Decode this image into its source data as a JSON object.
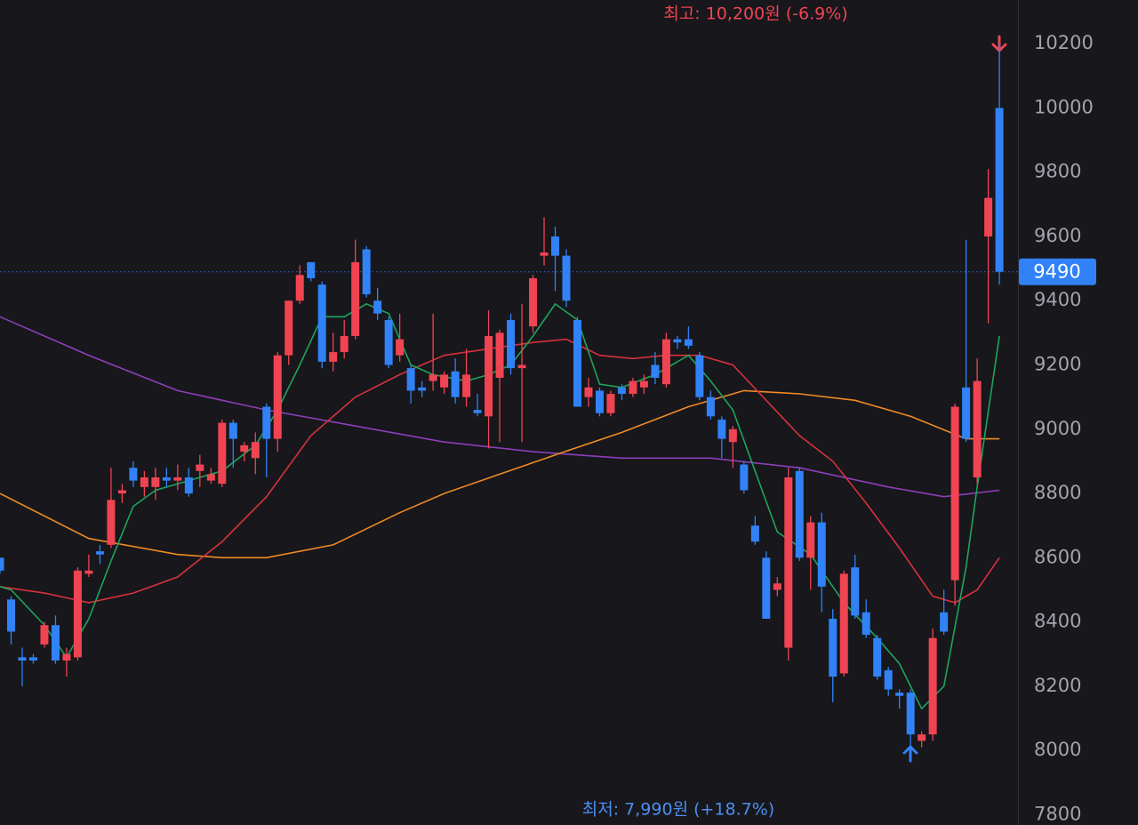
{
  "chart_data": {
    "type": "candlestick",
    "up_color": "#f04452",
    "down_color": "#3182f6",
    "open": [
      8600,
      8470,
      8290,
      8290,
      8330,
      8390,
      8280,
      8290,
      8550,
      8620,
      8640,
      8800,
      8880,
      8820,
      8820,
      8850,
      8840,
      8850,
      8870,
      8840,
      8830,
      9020,
      8930,
      8910,
      9070,
      8970,
      9230,
      9400,
      9520,
      9450,
      9210,
      9240,
      9290,
      9560,
      9400,
      9340,
      9230,
      9190,
      9130,
      9150,
      9130,
      9180,
      9100,
      9060,
      9040,
      9160,
      9340,
      9190,
      9320,
      9540,
      9600,
      9540,
      9340,
      9100,
      9120,
      9050,
      9130,
      9110,
      9130,
      9200,
      9140,
      9280,
      9280,
      9230,
      9100,
      9030,
      8960,
      8890,
      8700,
      8600,
      8500,
      8320,
      8870,
      8600,
      8710,
      8410,
      8240,
      8570,
      8430,
      8350,
      8250,
      8180,
      8180,
      8030,
      8050,
      8430,
      8530,
      9130,
      8850,
      9600,
      10000
    ],
    "high": [
      8600,
      8480,
      8320,
      8300,
      8400,
      8420,
      8320,
      8570,
      8610,
      8640,
      8880,
      8830,
      8900,
      8870,
      8880,
      8880,
      8890,
      8880,
      8920,
      8880,
      9030,
      9030,
      8960,
      8990,
      9080,
      9240,
      9400,
      9510,
      9520,
      9460,
      9300,
      9340,
      9590,
      9570,
      9440,
      9350,
      9360,
      9200,
      9150,
      9360,
      9180,
      9220,
      9250,
      9110,
      9370,
      9310,
      9360,
      9390,
      9480,
      9660,
      9630,
      9560,
      9350,
      9160,
      9130,
      9120,
      9140,
      9160,
      9170,
      9240,
      9300,
      9290,
      9320,
      9240,
      9120,
      9040,
      9010,
      8900,
      8730,
      8620,
      8540,
      8880,
      8880,
      8730,
      8740,
      8440,
      8560,
      8610,
      8470,
      8360,
      8260,
      8190,
      8190,
      8060,
      8380,
      8500,
      9080,
      9590,
      9220,
      9810,
      10200
    ],
    "low": [
      8550,
      8330,
      8200,
      8270,
      8320,
      8270,
      8230,
      8280,
      8540,
      8580,
      8630,
      8770,
      8820,
      8790,
      8780,
      8820,
      8810,
      8790,
      8820,
      8830,
      8820,
      8880,
      8900,
      8860,
      8850,
      8930,
      9200,
      9390,
      9460,
      9190,
      9180,
      9220,
      9280,
      9410,
      9340,
      9190,
      9210,
      9080,
      9100,
      9120,
      9110,
      9080,
      9070,
      9040,
      8940,
      8960,
      9170,
      8960,
      9300,
      9510,
      9430,
      9380,
      9070,
      9070,
      9040,
      9040,
      9090,
      9100,
      9110,
      9140,
      9130,
      9250,
      9250,
      9090,
      9030,
      8910,
      8880,
      8800,
      8640,
      8410,
      8480,
      8280,
      8590,
      8500,
      8430,
      8150,
      8230,
      8410,
      8350,
      8220,
      8170,
      8130,
      7990,
      8010,
      8030,
      8360,
      8450,
      8960,
      8830,
      9330,
      9450
    ],
    "close": [
      8560,
      8370,
      8280,
      8280,
      8390,
      8280,
      8300,
      8560,
      8560,
      8610,
      8780,
      8810,
      8840,
      8850,
      8850,
      8840,
      8850,
      8800,
      8890,
      8860,
      9020,
      8970,
      8950,
      8960,
      8970,
      9230,
      9400,
      9480,
      9470,
      9210,
      9240,
      9290,
      9520,
      9420,
      9360,
      9200,
      9280,
      9120,
      9120,
      9170,
      9170,
      9100,
      9170,
      9050,
      9290,
      9300,
      9190,
      9200,
      9470,
      9550,
      9540,
      9400,
      9070,
      9130,
      9050,
      9110,
      9110,
      9150,
      9150,
      9160,
      9280,
      9270,
      9260,
      9100,
      9040,
      8970,
      9000,
      8810,
      8650,
      8410,
      8520,
      8850,
      8600,
      8710,
      8510,
      8230,
      8550,
      8420,
      8360,
      8230,
      8190,
      8170,
      8050,
      8050,
      8350,
      8370,
      9070,
      8970,
      9150,
      9720,
      9490
    ],
    "series": [
      {
        "color": "#8e3fb8",
        "x": [
          0,
          8,
          16,
          24,
          32,
          40,
          48,
          56,
          64,
          72,
          80,
          85,
          90
        ],
        "values": [
          9350,
          9230,
          9120,
          9060,
          9010,
          8960,
          8930,
          8910,
          8910,
          8880,
          8820,
          8790,
          8810
        ]
      },
      {
        "color": "#f08a24",
        "x": [
          0,
          8,
          16,
          20,
          24,
          30,
          36,
          40,
          45,
          50,
          56,
          62,
          67,
          72,
          77,
          82,
          87,
          90
        ],
        "values": [
          8800,
          8660,
          8610,
          8600,
          8600,
          8640,
          8740,
          8800,
          8860,
          8920,
          8990,
          9070,
          9120,
          9110,
          9090,
          9040,
          8970,
          8970
        ]
      },
      {
        "color": "#d6323c",
        "x": [
          0,
          4,
          8,
          12,
          16,
          20,
          24,
          28,
          32,
          36,
          40,
          44,
          48,
          51,
          54,
          57,
          60,
          63,
          66,
          69,
          72,
          75,
          78,
          81,
          84,
          86,
          88,
          90
        ],
        "values": [
          8510,
          8490,
          8460,
          8490,
          8540,
          8650,
          8790,
          8980,
          9100,
          9170,
          9230,
          9250,
          9270,
          9280,
          9230,
          9220,
          9230,
          9230,
          9200,
          9090,
          8980,
          8900,
          8770,
          8630,
          8480,
          8460,
          8500,
          8600
        ]
      },
      {
        "color": "#1fa45c",
        "x": [
          0,
          1,
          4,
          6,
          8,
          10,
          12,
          14,
          17,
          20,
          23,
          25,
          27,
          29,
          31,
          33,
          35,
          37,
          39,
          42,
          44,
          46,
          48,
          50,
          52,
          54,
          56,
          59,
          62,
          64,
          66,
          68,
          70,
          73,
          76,
          79,
          81,
          83,
          85,
          87,
          88,
          90
        ],
        "values": [
          8510,
          8500,
          8390,
          8290,
          8410,
          8590,
          8760,
          8810,
          8840,
          8870,
          8950,
          9060,
          9200,
          9350,
          9350,
          9390,
          9360,
          9200,
          9170,
          9150,
          9170,
          9200,
          9290,
          9390,
          9340,
          9140,
          9130,
          9170,
          9230,
          9150,
          9060,
          8870,
          8680,
          8610,
          8460,
          8350,
          8270,
          8130,
          8200,
          8570,
          8820,
          9290
        ]
      }
    ],
    "ylim": [
      7768,
      10336
    ],
    "yticks": [
      7800,
      8000,
      8200,
      8400,
      8600,
      8800,
      9000,
      9200,
      9400,
      9600,
      9800,
      10000,
      10200
    ],
    "last_price": 9490,
    "high_label": "최고: 10,200원 (-6.9%)",
    "low_label": "최저: 7,990원 (+18.7%)"
  }
}
